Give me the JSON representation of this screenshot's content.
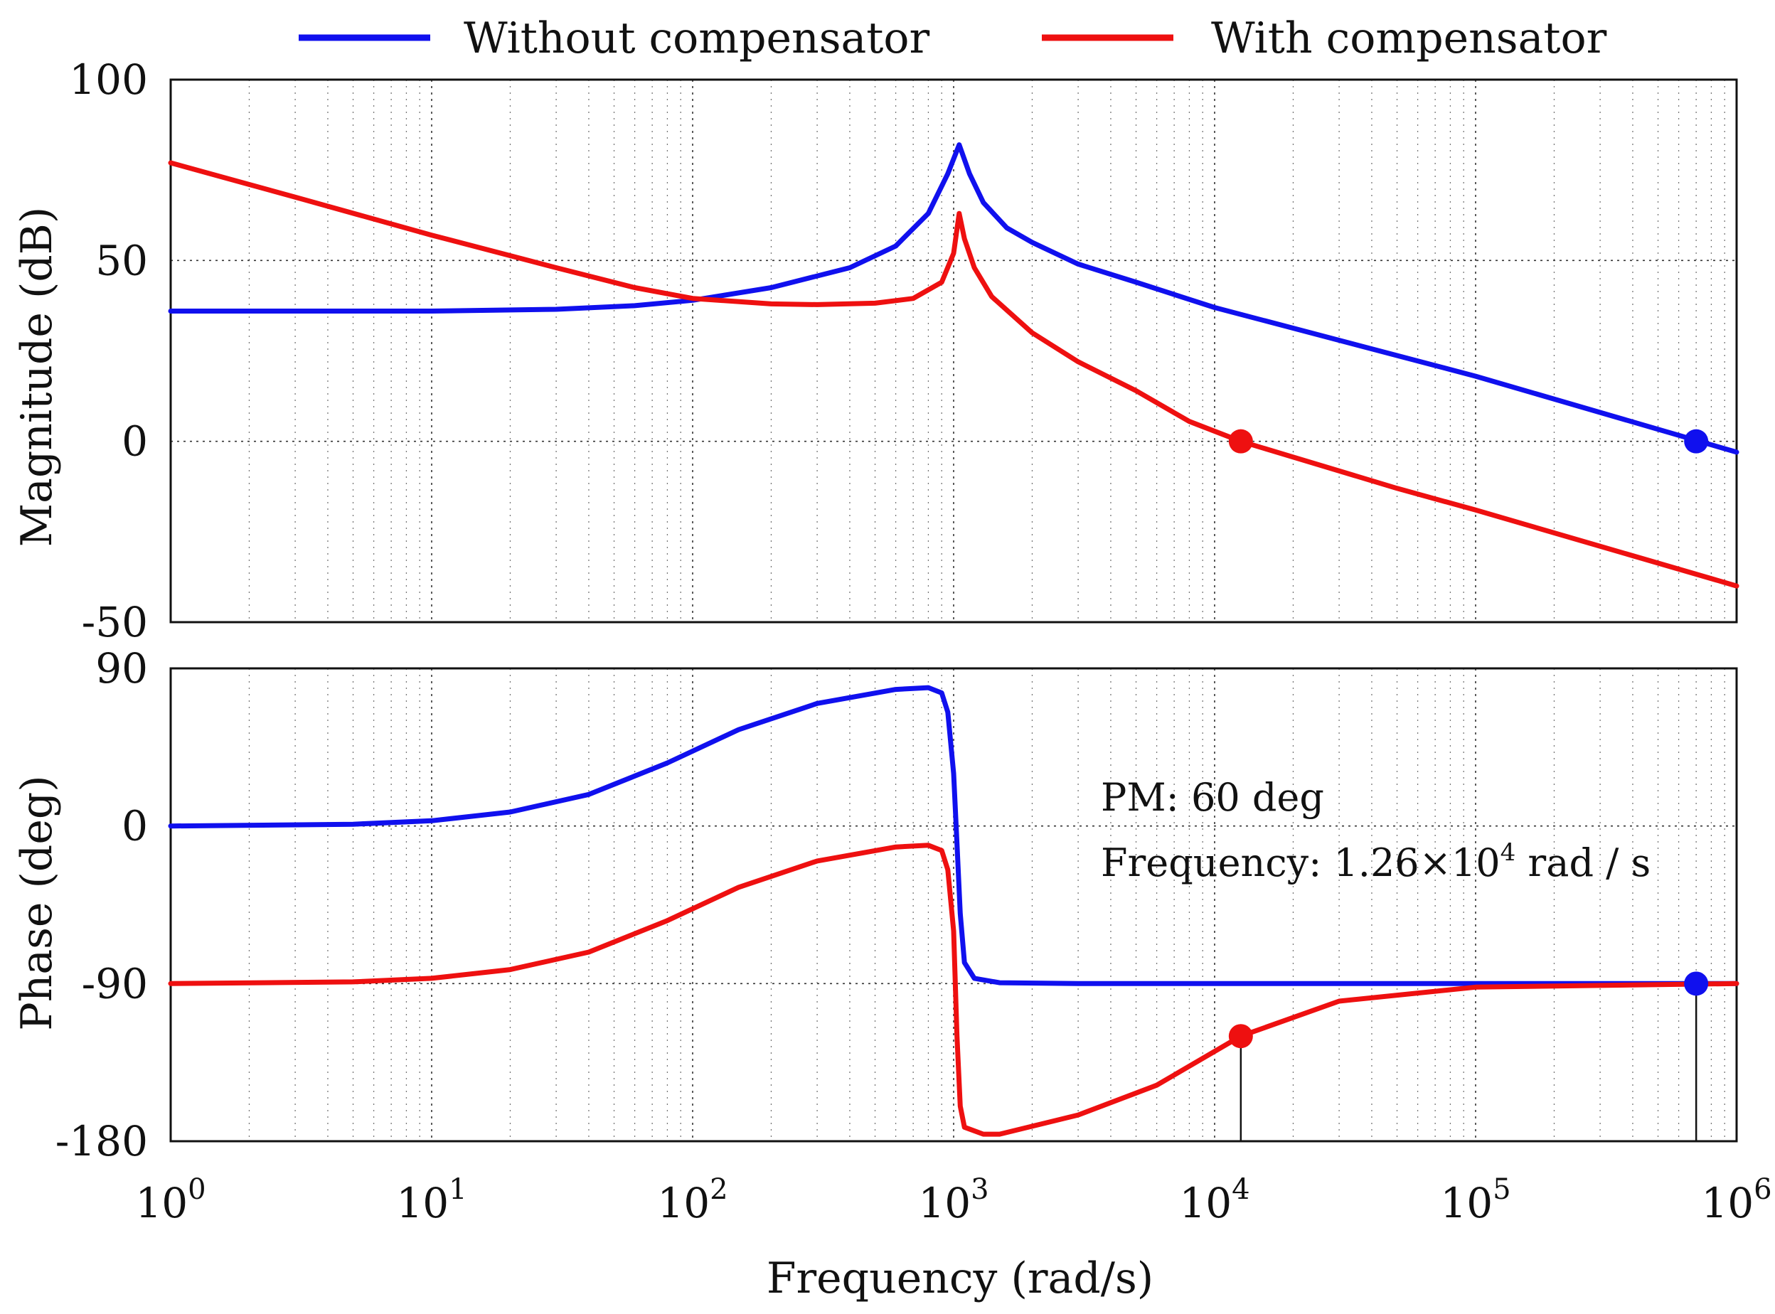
{
  "chart_data": {
    "type": "line",
    "title": "",
    "legend": {
      "placement": "top",
      "entries": [
        {
          "name": "Without compensator",
          "color": "#1010ee"
        },
        {
          "name": "With compensator",
          "color": "#ee1010"
        }
      ]
    },
    "x": {
      "label": "Frequency (rad/s)",
      "scale": "log",
      "range": [
        1,
        1000000
      ],
      "ticks": [
        {
          "base": "10",
          "exp": "0"
        },
        {
          "base": "10",
          "exp": "1"
        },
        {
          "base": "10",
          "exp": "2"
        },
        {
          "base": "10",
          "exp": "3"
        },
        {
          "base": "10",
          "exp": "4"
        },
        {
          "base": "10",
          "exp": "5"
        },
        {
          "base": "10",
          "exp": "6"
        }
      ]
    },
    "magnitude": {
      "ylabel": "Magnitude (dB)",
      "ylim": [
        -50,
        100
      ],
      "ticks": [
        "100",
        "50",
        "0",
        "-50"
      ],
      "tick_values": [
        100,
        50,
        0,
        -50
      ],
      "series": [
        {
          "name": "Without compensator",
          "color": "#1010ee",
          "points": [
            [
              1,
              36
            ],
            [
              10,
              36
            ],
            [
              30,
              36.5
            ],
            [
              60,
              37.5
            ],
            [
              100,
              39
            ],
            [
              200,
              42.5
            ],
            [
              400,
              48
            ],
            [
              600,
              54
            ],
            [
              800,
              63
            ],
            [
              950,
              74
            ],
            [
              1050,
              82
            ],
            [
              1150,
              74
            ],
            [
              1300,
              66
            ],
            [
              1600,
              59
            ],
            [
              2000,
              55
            ],
            [
              3000,
              49
            ],
            [
              5000,
              44
            ],
            [
              10000,
              37
            ],
            [
              100000,
              18
            ],
            [
              1000000,
              -3
            ]
          ]
        },
        {
          "name": "With compensator",
          "color": "#ee1010",
          "points": [
            [
              1,
              77
            ],
            [
              3,
              67.5
            ],
            [
              10,
              57
            ],
            [
              30,
              48
            ],
            [
              60,
              42.5
            ],
            [
              100,
              39.5
            ],
            [
              200,
              38
            ],
            [
              300,
              37.8
            ],
            [
              500,
              38.2
            ],
            [
              700,
              39.5
            ],
            [
              900,
              44
            ],
            [
              1000,
              52
            ],
            [
              1050,
              63
            ],
            [
              1100,
              56
            ],
            [
              1200,
              48
            ],
            [
              1400,
              40
            ],
            [
              2000,
              30
            ],
            [
              3000,
              22
            ],
            [
              5000,
              14
            ],
            [
              8000,
              5.5
            ],
            [
              12600,
              0
            ],
            [
              50000,
              -13
            ],
            [
              100000,
              -19
            ],
            [
              1000000,
              -40
            ]
          ]
        }
      ],
      "markers": [
        {
          "x": 12600,
          "y": 0,
          "color": "#ee1010"
        },
        {
          "x": 700000,
          "y": 0,
          "color": "#1010ee"
        }
      ]
    },
    "phase": {
      "ylabel": "Phase (deg)",
      "ylim": [
        -180,
        90
      ],
      "ticks": [
        "90",
        "0",
        "-90",
        "-180"
      ],
      "tick_values": [
        90,
        0,
        -90,
        -180
      ],
      "series": [
        {
          "name": "Without compensator",
          "color": "#1010ee",
          "points": [
            [
              1,
              0
            ],
            [
              5,
              1
            ],
            [
              10,
              3
            ],
            [
              20,
              8
            ],
            [
              40,
              18
            ],
            [
              80,
              36
            ],
            [
              150,
              55
            ],
            [
              300,
              70
            ],
            [
              600,
              78
            ],
            [
              800,
              79
            ],
            [
              900,
              76
            ],
            [
              950,
              65
            ],
            [
              1000,
              30
            ],
            [
              1030,
              -10
            ],
            [
              1060,
              -50
            ],
            [
              1100,
              -78
            ],
            [
              1200,
              -87
            ],
            [
              1500,
              -89.5
            ],
            [
              3000,
              -90
            ],
            [
              1000000,
              -90
            ]
          ]
        },
        {
          "name": "With compensator",
          "color": "#ee1010",
          "points": [
            [
              1,
              -90
            ],
            [
              5,
              -89
            ],
            [
              10,
              -87
            ],
            [
              20,
              -82
            ],
            [
              40,
              -72
            ],
            [
              80,
              -54
            ],
            [
              150,
              -35
            ],
            [
              300,
              -20
            ],
            [
              600,
              -12
            ],
            [
              800,
              -11
            ],
            [
              900,
              -14
            ],
            [
              950,
              -25
            ],
            [
              1000,
              -60
            ],
            [
              1030,
              -120
            ],
            [
              1060,
              -160
            ],
            [
              1100,
              -172
            ],
            [
              1300,
              -176
            ],
            [
              1500,
              -176
            ],
            [
              3000,
              -165
            ],
            [
              6000,
              -148
            ],
            [
              12600,
              -120
            ],
            [
              30000,
              -100
            ],
            [
              100000,
              -92
            ],
            [
              1000000,
              -90
            ]
          ]
        }
      ],
      "markers": [
        {
          "x": 12600,
          "y": -120,
          "color": "#ee1010"
        },
        {
          "x": 700000,
          "y": -90,
          "color": "#1010ee"
        }
      ]
    },
    "annotations": {
      "pm": "PM: 60 deg",
      "freq_prefix": "Frequency: 1.26×10",
      "freq_exp": "4",
      "freq_unit": " rad / s"
    }
  }
}
